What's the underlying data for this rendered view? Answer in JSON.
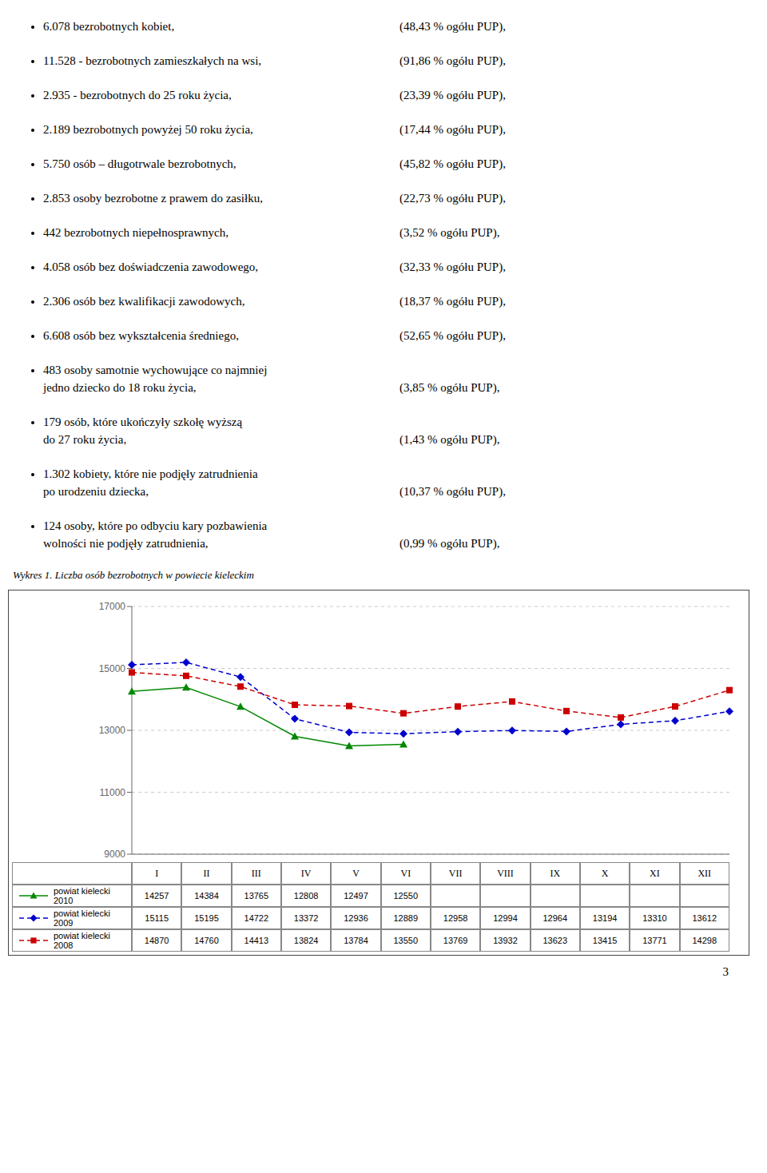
{
  "chart_data": {
    "type": "line",
    "title": "Wykres 1. Liczba osób bezrobotnych w powiecie kieleckim",
    "annotations": [
      [
        "6.078 bezrobotnych kobiet,",
        "(48,43 % ogółu PUP),"
      ],
      [
        "11.528 - bezrobotnych zamieszkałych na wsi,",
        "(91,86 % ogółu PUP),"
      ],
      [
        "2.935 - bezrobotnych do 25 roku życia,",
        "(23,39 % ogółu PUP),"
      ],
      [
        "2.189 bezrobotnych powyżej 50 roku życia,",
        "(17,44 % ogółu PUP),"
      ],
      [
        "5.750 osób – długotrwale bezrobotnych,",
        "(45,82 % ogółu PUP),"
      ],
      [
        "2.853 osoby bezrobotne z prawem do zasiłku,",
        "(22,73 % ogółu PUP),"
      ],
      [
        "442 bezrobotnych niepełnosprawnych,",
        "(3,52 % ogółu PUP),"
      ],
      [
        "4.058 osób bez doświadczenia zawodowego,",
        "(32,33 % ogółu PUP),"
      ],
      [
        "2.306 osób bez kwalifikacji zawodowych,",
        "(18,37 % ogółu PUP),"
      ],
      [
        "6.608 osób bez wykształcenia średniego,",
        "(52,65 % ogółu PUP),"
      ],
      [
        "483 osoby samotnie wychowujące co najmniej\njedno dziecko do 18 roku życia,",
        "(3,85 % ogółu PUP),"
      ],
      [
        "179 osób, które ukończyły szkołę wyższą\ndo 27 roku życia,",
        "(1,43 % ogółu PUP),"
      ],
      [
        "1.302 kobiety, które nie podjęły zatrudnienia\npo urodzeniu dziecka,",
        "(10,37 % ogółu PUP),"
      ],
      [
        "124 osoby, które po odbyciu kary pozbawienia\nwolności nie podjęły zatrudnienia,",
        "(0,99 % ogółu PUP),"
      ],
      "3"
    ],
    "categories": [
      "I",
      "II",
      "III",
      "IV",
      "V",
      "VI",
      "VII",
      "VIII",
      "IX",
      "X",
      "XI",
      "XII"
    ],
    "series": [
      {
        "name": "powiat kielecki 2010",
        "color": "#008800",
        "marker": "triangle",
        "line_style": "solid",
        "values": [
          14257,
          14384,
          13765,
          12808,
          12497,
          12550,
          null,
          null,
          null,
          null,
          null,
          null
        ]
      },
      {
        "name": "powiat kielecki 2009",
        "color": "#0000cc",
        "marker": "diamond",
        "line_style": "dashed",
        "values": [
          15115,
          15195,
          14722,
          13372,
          12936,
          12889,
          12958,
          12994,
          12964,
          13194,
          13310,
          13612
        ]
      },
      {
        "name": "powiat kielecki 2008",
        "color": "#cc0000",
        "marker": "square",
        "line_style": "dashed",
        "values": [
          14870,
          14760,
          14413,
          13824,
          13784,
          13550,
          13769,
          13932,
          13623,
          13415,
          13771,
          14298
        ]
      }
    ],
    "ylim": [
      9000,
      17000
    ],
    "yticks": [
      9000,
      11000,
      13000,
      15000,
      17000
    ],
    "grid": true,
    "data_labels": true,
    "legend": "bottom"
  }
}
